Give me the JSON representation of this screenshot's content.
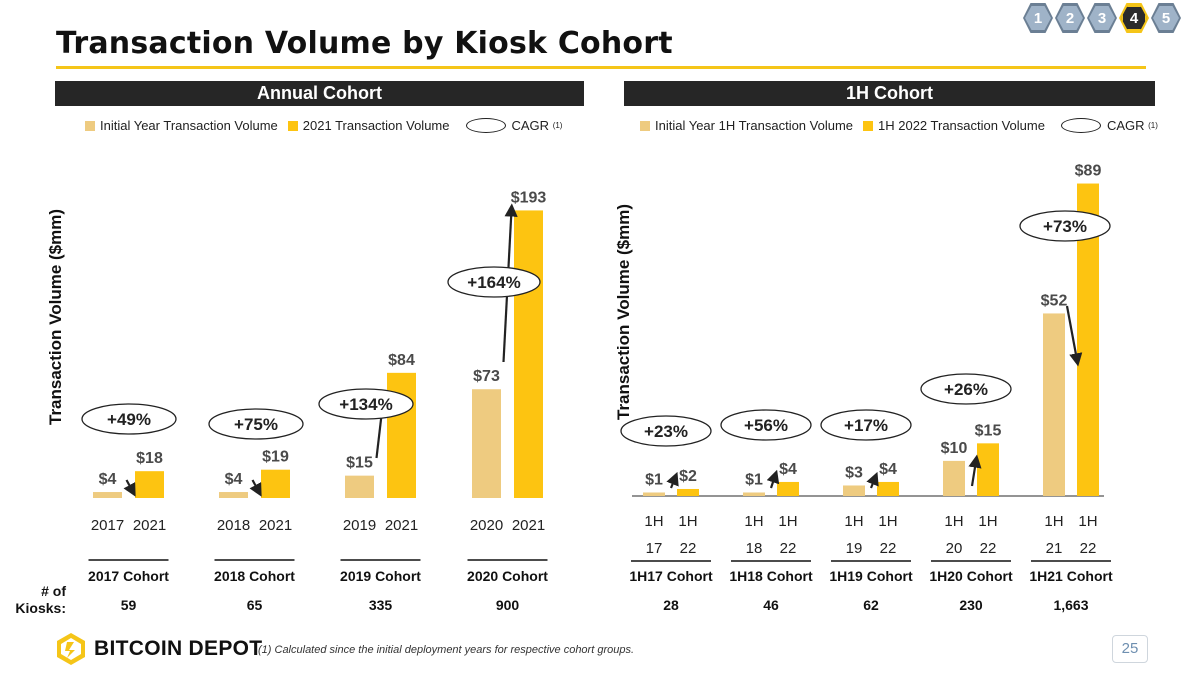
{
  "title": "Transaction Volume by Kiosk Cohort",
  "nav": {
    "pages": [
      "1",
      "2",
      "3",
      "4",
      "5"
    ],
    "active": "4"
  },
  "colors": {
    "initial": "#EECB80",
    "final": "#FDC411",
    "header_bg": "#262626",
    "accent": "#F5C518"
  },
  "annual_header": "Annual Cohort",
  "half_header": "1H Cohort",
  "annual_legend": {
    "initial": "Initial Year Transaction Volume",
    "final": "2021 Transaction Volume",
    "cagr": "CAGR",
    "cagr_note": "(1)"
  },
  "half_legend": {
    "initial": "Initial Year 1H Transaction Volume",
    "final": "1H 2022 Transaction Volume",
    "cagr": "CAGR",
    "cagr_note": "(1)"
  },
  "ylabel": "Transaction Volume ($mm)",
  "kiosks_label_1": "# of",
  "kiosks_label_2": "Kiosks:",
  "chart_data": [
    {
      "type": "bar",
      "title": "Annual Cohort",
      "ylabel": "Transaction Volume ($mm)",
      "ylim": [
        0,
        200
      ],
      "categories": [
        "2017 Cohort",
        "2018 Cohort",
        "2019 Cohort",
        "2020 Cohort"
      ],
      "series": [
        {
          "name": "Initial Year Transaction Volume",
          "values": [
            4,
            4,
            15,
            73
          ],
          "labels": [
            "$4",
            "$4",
            "$15",
            "$73"
          ],
          "ticks": [
            "2017",
            "2018",
            "2019",
            "2020"
          ]
        },
        {
          "name": "2021 Transaction Volume",
          "values": [
            18,
            19,
            84,
            193
          ],
          "labels": [
            "$18",
            "$19",
            "$84",
            "$193"
          ],
          "ticks": [
            "2021",
            "2021",
            "2021",
            "2021"
          ]
        }
      ],
      "cagr": [
        "+49%",
        "+75%",
        "+134%",
        "+164%"
      ],
      "kiosks": [
        "59",
        "65",
        "335",
        "900"
      ]
    },
    {
      "type": "bar",
      "title": "1H Cohort",
      "ylabel": "Transaction Volume ($mm)",
      "ylim": [
        0,
        92
      ],
      "categories": [
        "1H17 Cohort",
        "1H18 Cohort",
        "1H19 Cohort",
        "1H20 Cohort",
        "1H21 Cohort"
      ],
      "series": [
        {
          "name": "Initial Year 1H Transaction Volume",
          "values": [
            1,
            1,
            3,
            10,
            52
          ],
          "labels": [
            "$1",
            "$1",
            "$3",
            "$10",
            "$52"
          ],
          "ticks_top": [
            "1H",
            "1H",
            "1H",
            "1H",
            "1H"
          ],
          "ticks": [
            "17",
            "18",
            "19",
            "20",
            "21"
          ]
        },
        {
          "name": "1H 2022 Transaction Volume",
          "values": [
            2,
            4,
            4,
            15,
            89
          ],
          "labels": [
            "$2",
            "$4",
            "$4",
            "$15",
            "$89"
          ],
          "ticks_top": [
            "1H",
            "1H",
            "1H",
            "1H",
            "1H"
          ],
          "ticks": [
            "22",
            "22",
            "22",
            "22",
            "22"
          ]
        }
      ],
      "cagr": [
        "+23%",
        "+56%",
        "+17%",
        "+26%",
        "+73%"
      ],
      "kiosks": [
        "28",
        "46",
        "62",
        "230",
        "1,663"
      ]
    }
  ],
  "brand": "BITCOIN DEPOT",
  "footnote": "(1)   Calculated since the initial deployment years for respective cohort groups.",
  "page_number": "25"
}
